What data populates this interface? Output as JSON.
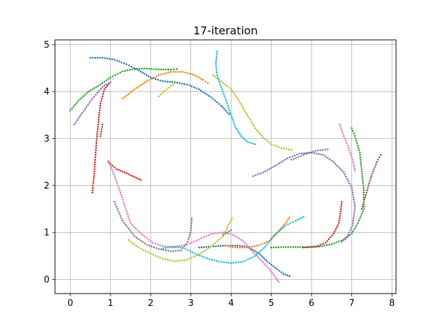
{
  "chart_data": {
    "type": "scatter",
    "title": "17-iteration",
    "xlabel": "",
    "ylabel": "",
    "xlim": [
      -0.38,
      8.1
    ],
    "ylim": [
      -0.3,
      5.1
    ],
    "xticks": [
      0,
      1,
      2,
      3,
      4,
      5,
      6,
      7,
      8
    ],
    "yticks": [
      0,
      1,
      2,
      3,
      4,
      5
    ],
    "grid": true,
    "legend": "none",
    "series": [
      {
        "color": "#1f77b4",
        "points": [
          [
            0.5,
            4.72
          ],
          [
            0.8,
            4.72
          ],
          [
            1.1,
            4.68
          ],
          [
            1.4,
            4.58
          ],
          [
            1.7,
            4.45
          ],
          [
            2.0,
            4.3
          ],
          [
            2.3,
            4.22
          ],
          [
            2.6,
            4.2
          ],
          [
            2.9,
            4.15
          ],
          [
            3.2,
            4.05
          ],
          [
            3.5,
            3.88
          ],
          [
            3.75,
            3.7
          ],
          [
            3.95,
            3.52
          ]
        ]
      },
      {
        "color": "#1f77b4",
        "points": [
          [
            3.2,
            0.68
          ],
          [
            3.5,
            0.7
          ],
          [
            3.8,
            0.72
          ],
          [
            4.1,
            0.72
          ],
          [
            4.4,
            0.7
          ],
          [
            4.7,
            0.55
          ],
          [
            4.9,
            0.38
          ],
          [
            5.1,
            0.25
          ],
          [
            5.3,
            0.12
          ],
          [
            5.45,
            0.07
          ]
        ]
      },
      {
        "color": "#ff7f0e",
        "points": [
          [
            1.3,
            3.85
          ],
          [
            1.6,
            4.05
          ],
          [
            1.9,
            4.22
          ],
          [
            2.2,
            4.35
          ],
          [
            2.5,
            4.42
          ],
          [
            2.8,
            4.42
          ],
          [
            3.1,
            4.35
          ],
          [
            3.3,
            4.25
          ],
          [
            3.42,
            4.18
          ]
        ]
      },
      {
        "color": "#ff7f0e",
        "points": [
          [
            3.85,
            0.72
          ],
          [
            4.1,
            0.68
          ],
          [
            4.4,
            0.68
          ],
          [
            4.7,
            0.73
          ],
          [
            4.95,
            0.82
          ],
          [
            5.15,
            1.0
          ],
          [
            5.35,
            1.2
          ],
          [
            5.45,
            1.32
          ]
        ]
      },
      {
        "color": "#2ca02c",
        "points": [
          [
            0.0,
            3.6
          ],
          [
            0.2,
            3.8
          ],
          [
            0.45,
            4.0
          ],
          [
            0.7,
            4.12
          ],
          [
            1.0,
            4.3
          ],
          [
            1.3,
            4.43
          ],
          [
            1.6,
            4.48
          ],
          [
            1.9,
            4.49
          ],
          [
            2.2,
            4.47
          ],
          [
            2.5,
            4.47
          ],
          [
            2.65,
            4.48
          ]
        ]
      },
      {
        "color": "#2ca02c",
        "points": [
          [
            5.0,
            0.68
          ],
          [
            5.3,
            0.69
          ],
          [
            5.6,
            0.69
          ],
          [
            5.9,
            0.69
          ],
          [
            6.2,
            0.7
          ],
          [
            6.5,
            0.75
          ],
          [
            6.8,
            0.85
          ],
          [
            7.0,
            0.98
          ],
          [
            7.15,
            1.2
          ],
          [
            7.3,
            1.5
          ],
          [
            7.3,
            1.9
          ],
          [
            7.25,
            2.3
          ],
          [
            7.2,
            2.7
          ],
          [
            7.1,
            3.0
          ],
          [
            7.0,
            3.22
          ]
        ]
      },
      {
        "color": "#d62728",
        "points": [
          [
            0.55,
            1.85
          ],
          [
            0.6,
            2.3
          ],
          [
            0.63,
            2.7
          ],
          [
            0.66,
            3.0
          ],
          [
            0.7,
            3.35
          ],
          [
            0.75,
            3.75
          ],
          [
            0.85,
            4.05
          ],
          [
            1.0,
            4.2
          ]
        ]
      },
      {
        "color": "#d62728",
        "points": [
          [
            0.95,
            2.5
          ],
          [
            1.15,
            2.35
          ],
          [
            1.35,
            2.28
          ],
          [
            1.55,
            2.2
          ],
          [
            1.75,
            2.12
          ]
        ]
      },
      {
        "color": "#d62728",
        "points": [
          [
            5.8,
            0.68
          ],
          [
            6.1,
            0.7
          ],
          [
            6.35,
            0.78
          ],
          [
            6.55,
            0.98
          ],
          [
            6.68,
            1.2
          ],
          [
            6.73,
            1.5
          ],
          [
            6.75,
            1.65
          ]
        ]
      },
      {
        "color": "#9467bd",
        "points": [
          [
            0.1,
            3.3
          ],
          [
            0.3,
            3.55
          ],
          [
            0.55,
            3.85
          ],
          [
            0.8,
            4.1
          ],
          [
            1.0,
            4.2
          ]
        ]
      },
      {
        "color": "#9467bd",
        "points": [
          [
            4.55,
            2.2
          ],
          [
            4.8,
            2.28
          ],
          [
            5.1,
            2.42
          ],
          [
            5.4,
            2.58
          ],
          [
            5.7,
            2.68
          ],
          [
            6.0,
            2.7
          ],
          [
            6.3,
            2.65
          ],
          [
            6.55,
            2.5
          ],
          [
            6.8,
            2.28
          ],
          [
            7.0,
            1.95
          ],
          [
            7.08,
            1.55
          ],
          [
            7.02,
            1.15
          ],
          [
            6.88,
            0.9
          ],
          [
            6.75,
            0.8
          ]
        ]
      },
      {
        "color": "#8c564b",
        "points": [
          [
            0.8,
            3.3
          ],
          [
            0.75,
            3.05
          ]
        ]
      },
      {
        "color": "#8c564b",
        "points": [
          [
            7.25,
            1.5
          ],
          [
            7.35,
            1.8
          ],
          [
            7.45,
            2.1
          ],
          [
            7.55,
            2.35
          ],
          [
            7.65,
            2.55
          ],
          [
            7.72,
            2.65
          ]
        ]
      },
      {
        "color": "#e377c2",
        "points": [
          [
            0.95,
            2.52
          ],
          [
            1.1,
            2.2
          ],
          [
            1.25,
            1.85
          ],
          [
            1.38,
            1.5
          ],
          [
            1.5,
            1.2
          ],
          [
            1.75,
            0.98
          ],
          [
            2.05,
            0.78
          ],
          [
            2.35,
            0.7
          ],
          [
            2.6,
            0.7
          ],
          [
            2.9,
            0.74
          ],
          [
            3.2,
            0.85
          ],
          [
            3.5,
            0.97
          ],
          [
            3.8,
            1.0
          ],
          [
            4.05,
            0.95
          ],
          [
            4.3,
            0.82
          ],
          [
            4.5,
            0.62
          ],
          [
            4.75,
            0.4
          ],
          [
            4.95,
            0.22
          ],
          [
            5.12,
            0.02
          ],
          [
            5.18,
            -0.05
          ]
        ]
      },
      {
        "color": "#e377c2",
        "points": [
          [
            6.7,
            3.3
          ],
          [
            6.8,
            3.05
          ],
          [
            6.9,
            2.85
          ],
          [
            7.0,
            2.6
          ],
          [
            7.05,
            2.45
          ],
          [
            7.08,
            2.32
          ]
        ]
      },
      {
        "color": "#7f7f7f",
        "points": [
          [
            1.1,
            1.65
          ],
          [
            1.3,
            1.25
          ],
          [
            1.6,
            0.92
          ],
          [
            1.9,
            0.74
          ],
          [
            2.2,
            0.65
          ],
          [
            2.5,
            0.6
          ],
          [
            2.75,
            0.62
          ],
          [
            2.92,
            0.8
          ],
          [
            3.0,
            1.05
          ],
          [
            3.02,
            1.3
          ]
        ]
      },
      {
        "color": "#7f7f7f",
        "points": [
          [
            4.0,
            1.05
          ],
          [
            3.8,
            0.95
          ]
        ]
      },
      {
        "color": "#7f7f7f",
        "points": [
          [
            5.5,
            2.55
          ],
          [
            5.8,
            2.65
          ],
          [
            6.1,
            2.74
          ],
          [
            6.4,
            2.77
          ]
        ]
      },
      {
        "color": "#bcbd22",
        "points": [
          [
            1.45,
            0.84
          ],
          [
            1.7,
            0.68
          ],
          [
            2.0,
            0.55
          ],
          [
            2.3,
            0.44
          ],
          [
            2.6,
            0.39
          ],
          [
            2.9,
            0.42
          ],
          [
            3.2,
            0.53
          ],
          [
            3.5,
            0.7
          ],
          [
            3.8,
            0.92
          ],
          [
            4.02,
            1.3
          ]
        ]
      },
      {
        "color": "#bcbd22",
        "points": [
          [
            3.55,
            4.35
          ],
          [
            3.75,
            4.22
          ],
          [
            4.0,
            4.05
          ],
          [
            4.2,
            3.8
          ],
          [
            4.4,
            3.5
          ],
          [
            4.6,
            3.22
          ],
          [
            4.8,
            3.02
          ],
          [
            5.0,
            2.88
          ],
          [
            5.25,
            2.8
          ],
          [
            5.5,
            2.76
          ]
        ]
      },
      {
        "color": "#bcbd22",
        "points": [
          [
            2.2,
            3.9
          ],
          [
            2.4,
            4.05
          ],
          [
            2.6,
            4.18
          ]
        ]
      },
      {
        "color": "#17becf",
        "points": [
          [
            3.65,
            4.85
          ],
          [
            3.62,
            4.6
          ],
          [
            3.65,
            4.35
          ],
          [
            3.75,
            4.1
          ],
          [
            3.88,
            3.8
          ],
          [
            4.0,
            3.5
          ],
          [
            4.1,
            3.25
          ],
          [
            4.25,
            3.05
          ],
          [
            4.42,
            2.92
          ],
          [
            4.6,
            2.88
          ]
        ]
      },
      {
        "color": "#17becf",
        "points": [
          [
            2.3,
            0.66
          ],
          [
            2.5,
            0.69
          ],
          [
            2.8,
            0.68
          ],
          [
            3.1,
            0.55
          ],
          [
            3.4,
            0.45
          ],
          [
            3.7,
            0.38
          ],
          [
            4.0,
            0.35
          ],
          [
            4.3,
            0.38
          ],
          [
            4.6,
            0.5
          ],
          [
            4.85,
            0.7
          ],
          [
            5.05,
            0.92
          ],
          [
            5.35,
            1.15
          ],
          [
            5.6,
            1.25
          ],
          [
            5.8,
            1.33
          ]
        ]
      }
    ]
  }
}
